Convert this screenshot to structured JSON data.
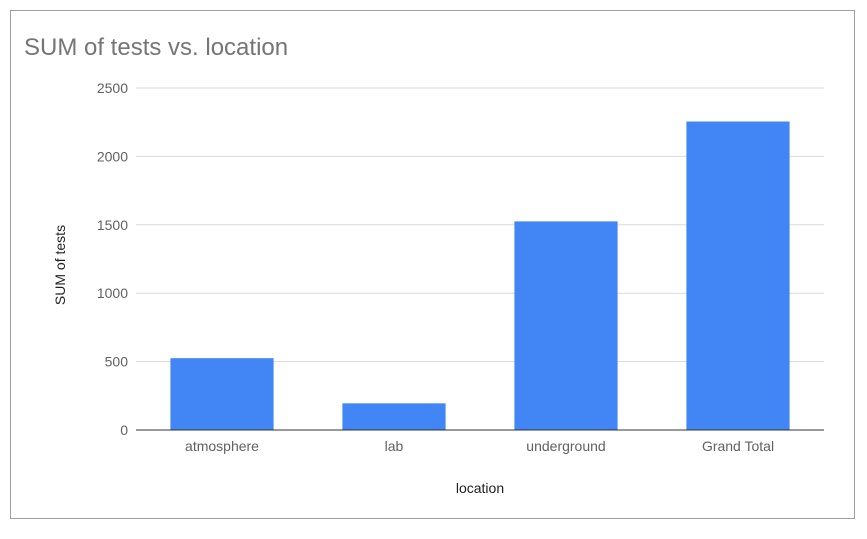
{
  "chart_data": {
    "type": "bar",
    "title": "SUM of tests vs. location",
    "xlabel": "location",
    "ylabel": "SUM of tests",
    "categories": [
      "atmosphere",
      "lab",
      "underground",
      "Grand Total"
    ],
    "series": [
      {
        "values": [
          525,
          195,
          1525,
          2255
        ]
      }
    ],
    "ylim": [
      0,
      2500
    ],
    "yticks": [
      0,
      500,
      1000,
      1500,
      2000,
      2500
    ],
    "grid": true,
    "legend": "none",
    "colors": {
      "bar": "#4285f4",
      "grid": "#d9d9d9",
      "axis": "#333333"
    }
  }
}
